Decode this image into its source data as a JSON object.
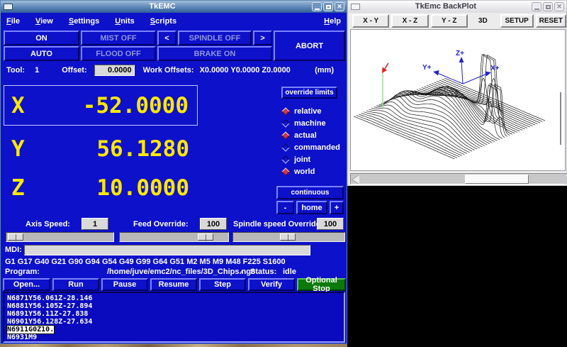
{
  "tkemc": {
    "title": "TkEMC",
    "menus": [
      "File",
      "View",
      "Settings",
      "Units",
      "Scripts"
    ],
    "menu_help": "Help",
    "buttons": {
      "estop": "ON",
      "mode": "AUTO",
      "mist": "MIST OFF",
      "flood": "FLOOD OFF",
      "spindle_dec": "<",
      "spindle": "SPINDLE OFF",
      "spindle_inc": ">",
      "brake": "BRAKE ON",
      "abort": "ABORT"
    },
    "tool_row": {
      "tool_label": "Tool:",
      "tool_value": "1",
      "offset_label": "Offset:",
      "offset_value": "0.0000",
      "work_offsets_label": "Work Offsets:",
      "work_offsets_value": "X0.0000 Y0.0000 Z0.0000",
      "units": "(mm)"
    },
    "dro": {
      "x_label": "X",
      "x_value": "-52.0000",
      "y_label": "Y",
      "y_value": "56.1280",
      "z_label": "Z",
      "z_value": "10.0000"
    },
    "override_limits": "override limits",
    "radios": [
      {
        "label": "relative",
        "on": true
      },
      {
        "label": "machine",
        "on": false
      },
      {
        "label": "actual",
        "on": true
      },
      {
        "label": "commanded",
        "on": false
      },
      {
        "label": "joint",
        "on": false
      },
      {
        "label": "world",
        "on": true
      }
    ],
    "jog": {
      "continuous": "continuous",
      "minus": "-",
      "home": "home",
      "plus": "+"
    },
    "speeds": {
      "axis_label": "Axis Speed:",
      "axis_value": "1",
      "feed_label": "Feed Override:",
      "feed_value": "100",
      "spindle_label": "Spindle speed Override:",
      "spindle_value": "100"
    },
    "mdi_label": "MDI:",
    "active_codes": "G1 G17 G40 G21 G90 G94 G54 G49 G99 G64 G51 M2 M5 M9 M48 F225 S1600",
    "program": {
      "label": "Program:",
      "path": "/home/juve/emc2/nc_files/3D_Chips.ngc",
      "separator": "-",
      "status_label": "Status:",
      "status": "idle"
    },
    "prog_buttons": {
      "open": "Open...",
      "run": "Run",
      "pause": "Pause",
      "resume": "Resume",
      "step": "Step",
      "verify": "Verify",
      "optional_stop": "Optional Stop"
    },
    "listing": {
      "lines": [
        "N6871Y56.061Z-28.146",
        "N6881Y56.105Z-27.894",
        "N6891Y56.11Z-27.838",
        "N6901Y56.128Z-27.634",
        "N6911G0Z10.",
        "N6931M9"
      ],
      "highlighted_line": "N6911G0Z10."
    }
  },
  "backplot": {
    "title": "TkEmc BackPlot",
    "tabs": {
      "xy": "X - Y",
      "xz": "X - Z",
      "yz": "Y - Z"
    },
    "view": "3D",
    "setup": "SETUP",
    "reset": "RESET",
    "axis_labels": {
      "x": "X+",
      "y": "Y+",
      "z": "Z+"
    }
  },
  "colors": {
    "main_blue": "#0d11c9",
    "dro_yellow": "#ffe800",
    "optional_stop_green": "#0b7a0b",
    "axis_blue": "#2222cc",
    "tool_marker_red": "#e02020",
    "tool_marker_green": "#9fdf9f"
  }
}
